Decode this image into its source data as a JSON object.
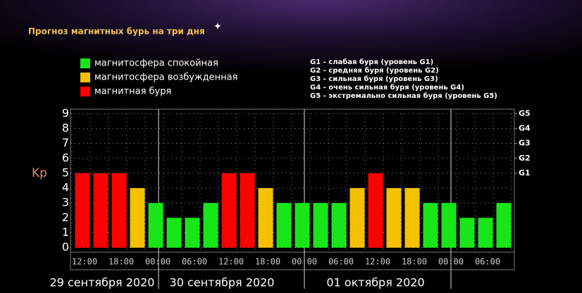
{
  "chart_data": {
    "type": "bar",
    "title": "Прогноз магнитных бурь на три дня",
    "ylabel": "Kp",
    "legend": [
      {
        "name": "магнитосфера спокойная",
        "color": "#19e619"
      },
      {
        "name": "магнитосфера возбужденная",
        "color": "#f5c000"
      },
      {
        "name": "магнитная буря",
        "color": "#ff0000"
      }
    ],
    "notes": [
      "G1 - слабая буря (уровень G1)",
      "G2 - средняя буря (уровень G2)",
      "G3 - сильная буря (уровень G3)",
      "G4 - очень сильная буря (уровень G4)",
      "G5 - экстремально сильная буря (уровень G5)"
    ],
    "categories": [
      "12:00",
      null,
      "18:00",
      null,
      "00:00",
      null,
      "06:00",
      null,
      "12:00",
      null,
      "18:00",
      null,
      "00:00",
      null,
      "06:00",
      null,
      "12:00",
      null,
      "18:00",
      null,
      "00:00",
      null,
      "06:00",
      null
    ],
    "day_labels": [
      "29 сентября 2020",
      "30 сентября 2020",
      "01 октября 2020"
    ],
    "values": [
      5,
      5,
      5,
      4,
      3,
      2,
      2,
      3,
      5,
      5,
      4,
      3,
      3,
      3,
      3,
      4,
      5,
      4,
      4,
      3,
      3,
      2,
      2,
      3
    ],
    "colors": [
      "#ff0000",
      "#ff0000",
      "#ff0000",
      "#f5c000",
      "#19e619",
      "#19e619",
      "#19e619",
      "#19e619",
      "#ff0000",
      "#ff0000",
      "#f5c000",
      "#19e619",
      "#19e619",
      "#19e619",
      "#19e619",
      "#f5c000",
      "#ff0000",
      "#f5c000",
      "#f5c000",
      "#19e619",
      "#19e619",
      "#19e619",
      "#19e619",
      "#19e619"
    ],
    "ylim": [
      -0.3,
      9.3
    ],
    "yticks": [
      0,
      1,
      2,
      3,
      4,
      5,
      6,
      7,
      8,
      9
    ],
    "y2lim": [
      -0.3,
      9.3
    ],
    "y2ticks": [
      {
        "value": 5,
        "label": "G1"
      },
      {
        "value": 6,
        "label": "G2"
      },
      {
        "value": 7,
        "label": "G3"
      },
      {
        "value": 8,
        "label": "G4"
      },
      {
        "value": 9,
        "label": "G5"
      }
    ],
    "grid": true
  }
}
